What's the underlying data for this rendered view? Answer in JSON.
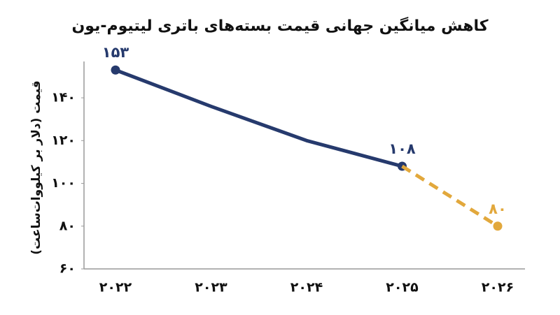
{
  "chart_data": {
    "type": "line",
    "title": "کاهش میانگین جهانی قیمت بسته‌های باتری لیتیوم-یون",
    "y_label": "قیمت (دلار بر کیلووات‌ساعت)",
    "categories": [
      "۲۰۲۲",
      "۲۰۲۳",
      "۲۰۲۴",
      "۲۰۲۵",
      "۲۰۲۶"
    ],
    "series": [
      {
        "color": "#263a6d",
        "style": "solid",
        "values": [
          153,
          136,
          120,
          108,
          null
        ],
        "value_labels": [
          "۱۵۳",
          null,
          null,
          "۱۰۸",
          null
        ]
      },
      {
        "color": "#e2a83c",
        "style": "dashed",
        "values": [
          null,
          null,
          null,
          108,
          80
        ],
        "value_labels": [
          null,
          null,
          null,
          null,
          "۸۰"
        ]
      }
    ],
    "ylim": [
      60,
      157
    ],
    "yticks": [
      {
        "value": 60,
        "label": "۶۰"
      },
      {
        "value": 80,
        "label": "۸۰"
      },
      {
        "value": 100,
        "label": "۱۰۰"
      },
      {
        "value": 120,
        "label": "۱۲۰"
      },
      {
        "value": 140,
        "label": "۱۴۰"
      }
    ],
    "grid": false
  }
}
